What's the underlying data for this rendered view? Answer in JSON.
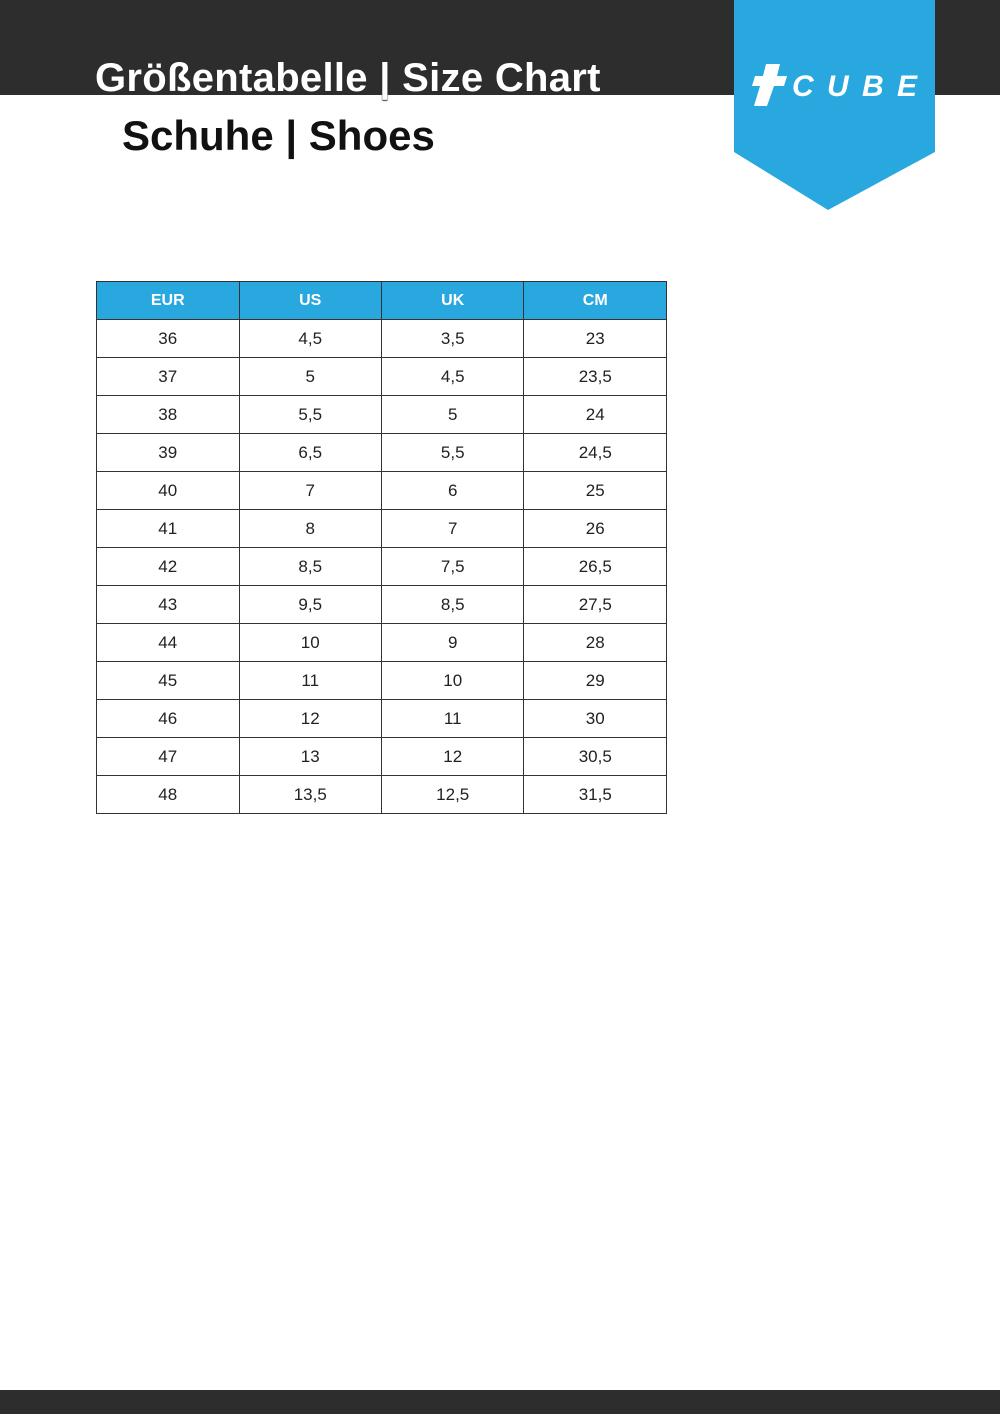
{
  "header": {
    "title": "Größentabelle | Size Chart",
    "subtitle": "Schuhe | Shoes",
    "logo_text": "CUBE",
    "brand_color": "#29a8e0",
    "bar_color": "#2d2d2d"
  },
  "table": {
    "columns": [
      "EUR",
      "US",
      "UK",
      "CM"
    ],
    "rows": [
      [
        "36",
        "4,5",
        "3,5",
        "23"
      ],
      [
        "37",
        "5",
        "4,5",
        "23,5"
      ],
      [
        "38",
        "5,5",
        "5",
        "24"
      ],
      [
        "39",
        "6,5",
        "5,5",
        "24,5"
      ],
      [
        "40",
        "7",
        "6",
        "25"
      ],
      [
        "41",
        "8",
        "7",
        "26"
      ],
      [
        "42",
        "8,5",
        "7,5",
        "26,5"
      ],
      [
        "43",
        "9,5",
        "8,5",
        "27,5"
      ],
      [
        "44",
        "10",
        "9",
        "28"
      ],
      [
        "45",
        "11",
        "10",
        "29"
      ],
      [
        "46",
        "12",
        "11",
        "30"
      ],
      [
        "47",
        "13",
        "12",
        "30,5"
      ],
      [
        "48",
        "13,5",
        "12,5",
        "31,5"
      ]
    ]
  }
}
